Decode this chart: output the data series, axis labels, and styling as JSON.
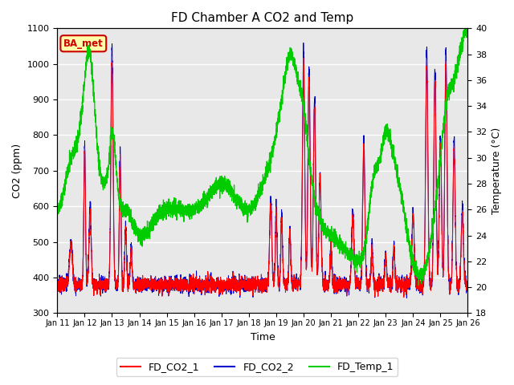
{
  "title": "FD Chamber A CO2 and Temp",
  "xlabel": "Time",
  "ylabel_left": "CO2 (ppm)",
  "ylabel_right": "Temperature (°C)",
  "co2_ylim": [
    300,
    1100
  ],
  "temp_ylim": [
    18,
    40
  ],
  "x_tick_labels": [
    "Jan 11",
    "Jan 12",
    "Jan 13",
    "Jan 14",
    "Jan 15",
    "Jan 16",
    "Jan 17",
    "Jan 18",
    "Jan 19",
    "Jan 20",
    "Jan 21",
    "Jan 22",
    "Jan 23",
    "Jan 24",
    "Jan 25",
    "Jan 26"
  ],
  "color_co2_1": "#ff0000",
  "color_co2_2": "#0000cc",
  "color_temp": "#00cc00",
  "background_color": "#e8e8e8",
  "legend_label_1": "FD_CO2_1",
  "legend_label_2": "FD_CO2_2",
  "legend_label_3": "FD_Temp_1",
  "annotation_text": "BA_met",
  "annotation_color": "#cc0000",
  "annotation_bg": "#ffffaa"
}
